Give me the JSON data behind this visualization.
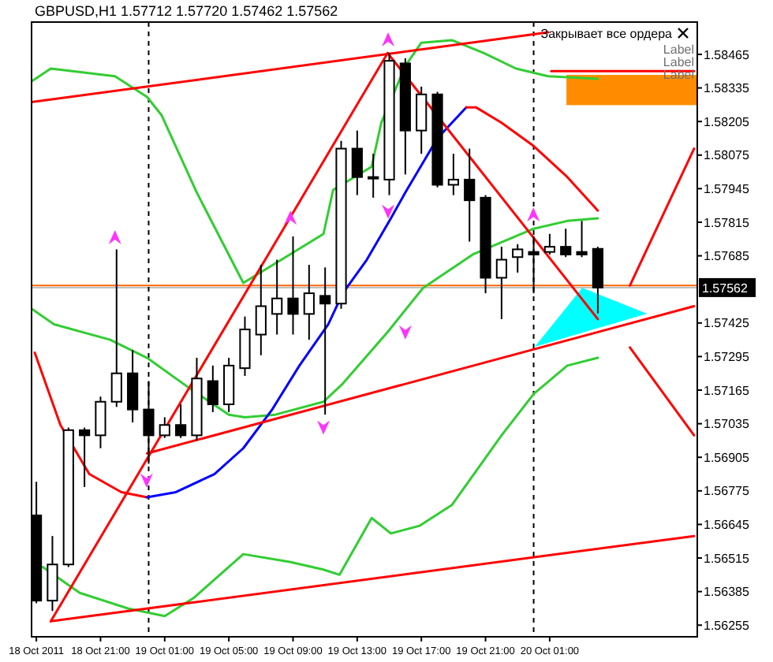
{
  "chart_data": {
    "type": "candlestick",
    "title": "GBPUSD,H1 1.57712 1.57720 1.57462 1.57562",
    "x": [
      "2011-10-18T17:00",
      "2011-10-18T18:00",
      "2011-10-18T19:00",
      "2011-10-18T20:00",
      "2011-10-18T21:00",
      "2011-10-18T22:00",
      "2011-10-18T23:00",
      "2011-10-19T00:00",
      "2011-10-19T01:00",
      "2011-10-19T02:00",
      "2011-10-19T03:00",
      "2011-10-19T04:00",
      "2011-10-19T05:00",
      "2011-10-19T06:00",
      "2011-10-19T07:00",
      "2011-10-19T08:00",
      "2011-10-19T09:00",
      "2011-10-19T10:00",
      "2011-10-19T11:00",
      "2011-10-19T12:00",
      "2011-10-19T13:00",
      "2011-10-19T14:00",
      "2011-10-19T15:00",
      "2011-10-19T16:00",
      "2011-10-19T17:00",
      "2011-10-19T18:00",
      "2011-10-19T19:00",
      "2011-10-19T20:00",
      "2011-10-19T21:00",
      "2011-10-19T22:00",
      "2011-10-19T23:00",
      "2011-10-20T00:00",
      "2011-10-20T01:00",
      "2011-10-20T02:00",
      "2011-10-20T03:00",
      "2011-10-20T04:00"
    ],
    "ohlc": [
      [
        1.5668,
        1.5681,
        1.5634,
        1.5635
      ],
      [
        1.5635,
        1.566,
        1.5631,
        1.5649
      ],
      [
        1.5649,
        1.5702,
        1.5648,
        1.5701
      ],
      [
        1.5701,
        1.5702,
        1.5679,
        1.5699
      ],
      [
        1.5699,
        1.5714,
        1.5694,
        1.5712
      ],
      [
        1.5712,
        1.5771,
        1.571,
        1.5723
      ],
      [
        1.5723,
        1.5732,
        1.5704,
        1.5709
      ],
      [
        1.5709,
        1.572,
        1.5688,
        1.5699
      ],
      [
        1.5699,
        1.5706,
        1.5698,
        1.5703
      ],
      [
        1.5703,
        1.5711,
        1.5698,
        1.5699
      ],
      [
        1.5699,
        1.5729,
        1.5697,
        1.5721
      ],
      [
        1.572,
        1.5726,
        1.5708,
        1.5711
      ],
      [
        1.5711,
        1.5729,
        1.5708,
        1.5726
      ],
      [
        1.5725,
        1.5745,
        1.5722,
        1.574
      ],
      [
        1.5738,
        1.5765,
        1.573,
        1.5749
      ],
      [
        1.5746,
        1.5767,
        1.5738,
        1.5752
      ],
      [
        1.5752,
        1.5776,
        1.5738,
        1.5746
      ],
      [
        1.5746,
        1.5765,
        1.5736,
        1.5754
      ],
      [
        1.5753,
        1.5764,
        1.5707,
        1.575
      ],
      [
        1.575,
        1.5813,
        1.5748,
        1.581
      ],
      [
        1.581,
        1.5817,
        1.5792,
        1.5799
      ],
      [
        1.5799,
        1.5808,
        1.5791,
        1.5799
      ],
      [
        1.5798,
        1.5847,
        1.5792,
        1.5844
      ],
      [
        1.5843,
        1.5845,
        1.58,
        1.5817
      ],
      [
        1.5817,
        1.5834,
        1.5808,
        1.5831
      ],
      [
        1.5831,
        1.5832,
        1.5795,
        1.5796
      ],
      [
        1.5796,
        1.5808,
        1.5792,
        1.5798
      ],
      [
        1.5798,
        1.581,
        1.5774,
        1.579
      ],
      [
        1.5791,
        1.5792,
        1.5754,
        1.576
      ],
      [
        1.576,
        1.5772,
        1.5744,
        1.5767
      ],
      [
        1.5768,
        1.5773,
        1.5762,
        1.5771
      ],
      [
        1.577,
        1.5776,
        1.5754,
        1.5769
      ],
      [
        1.577,
        1.5777,
        1.5769,
        1.5772
      ],
      [
        1.5772,
        1.5779,
        1.5768,
        1.5769
      ],
      [
        1.577,
        1.5782,
        1.5768,
        1.5769
      ],
      [
        1.57712,
        1.5772,
        1.57462,
        1.57562
      ]
    ],
    "series": [
      {
        "type": "line",
        "color": "#32cd32",
        "x": [
          "2011-10-18T16:42",
          "2011-10-18T17:54",
          "2011-10-18T21:54",
          "2011-10-18T23:54",
          "2011-10-19T00:48",
          "2011-10-19T03:00",
          "2011-10-19T05:54",
          "2011-10-19T08:48",
          "2011-10-19T10:54",
          "2011-10-19T11:30",
          "2011-10-19T13:54",
          "2011-10-19T14:30",
          "2011-10-19T16:00",
          "2011-10-19T17:00",
          "2011-10-19T18:54",
          "2011-10-19T20:54",
          "2011-10-19T22:54",
          "2011-10-20T00:54",
          "2011-10-20T04:00"
        ],
        "values": [
          1.5836,
          1.5841,
          1.5838,
          1.583,
          1.5823,
          1.5793,
          1.5758,
          1.5769,
          1.5777,
          1.5794,
          1.5803,
          1.582,
          1.5842,
          1.5851,
          1.5852,
          1.5847,
          1.5841,
          1.5838,
          1.5837
        ]
      },
      {
        "type": "line",
        "color": "#32cd32",
        "x": [
          "2011-10-18T16:42",
          "2011-10-18T18:06",
          "2011-10-18T21:36",
          "2011-10-18T23:54",
          "2011-10-19T02:36",
          "2011-10-19T05:00",
          "2011-10-19T06:00",
          "2011-10-19T07:54",
          "2011-10-19T10:54",
          "2011-10-19T12:06",
          "2011-10-19T14:54",
          "2011-10-19T17:06",
          "2011-10-19T20:12",
          "2011-10-20T00:00",
          "2011-10-20T02:06",
          "2011-10-20T04:00"
        ],
        "values": [
          1.5748,
          1.5742,
          1.5736,
          1.5729,
          1.5717,
          1.5707,
          1.5706,
          1.5707,
          1.5712,
          1.5719,
          1.5739,
          1.5756,
          1.5769,
          1.5779,
          1.5782,
          1.5783
        ]
      },
      {
        "type": "line",
        "color": "#32cd32",
        "x": [
          "2011-10-18T17:24",
          "2011-10-18T19:42",
          "2011-10-18T22:42",
          "2011-10-19T01:00",
          "2011-10-19T02:48",
          "2011-10-19T05:54",
          "2011-10-19T08:48",
          "2011-10-19T10:54",
          "2011-10-19T11:54",
          "2011-10-19T13:54",
          "2011-10-19T15:06",
          "2011-10-19T16:54",
          "2011-10-19T18:54",
          "2011-10-19T22:00",
          "2011-10-20T00:00",
          "2011-10-20T02:06",
          "2011-10-20T04:00"
        ],
        "values": [
          1.5648,
          1.5638,
          1.5632,
          1.5629,
          1.5636,
          1.5653,
          1.565,
          1.5647,
          1.5645,
          1.5667,
          1.5661,
          1.5664,
          1.5672,
          1.5699,
          1.5715,
          1.5726,
          1.5729
        ]
      },
      {
        "type": "line",
        "color": "#ff0000",
        "x": [
          "2011-10-18T16:54",
          "2011-10-18T18:30",
          "2011-10-18T20:18",
          "2011-10-18T22:18",
          "2011-10-18T23:54"
        ],
        "values": [
          1.5731,
          1.5703,
          1.5684,
          1.5677,
          1.5675
        ]
      },
      {
        "type": "line",
        "color": "#0000ff",
        "x": [
          "2011-10-18T23:54",
          "2011-10-19T01:42",
          "2011-10-19T04:06",
          "2011-10-19T05:54",
          "2011-10-19T07:42",
          "2011-10-19T09:24",
          "2011-10-19T11:12",
          "2011-10-19T12:06",
          "2011-10-19T13:36",
          "2011-10-19T15:06",
          "2011-10-19T16:00",
          "2011-10-19T18:00",
          "2011-10-19T19:48"
        ],
        "values": [
          1.5675,
          1.5677,
          1.5684,
          1.5694,
          1.5709,
          1.5726,
          1.5742,
          1.5754,
          1.5767,
          1.5783,
          1.5793,
          1.5814,
          1.5826
        ]
      },
      {
        "type": "line",
        "color": "#ff0000",
        "x": [
          "2011-10-19T19:48",
          "2011-10-19T20:24",
          "2011-10-19T22:00",
          "2011-10-20T00:00",
          "2011-10-20T02:06",
          "2011-10-20T04:00"
        ],
        "values": [
          1.5826,
          1.5826,
          1.582,
          1.5811,
          1.5799,
          1.5786
        ]
      },
      {
        "type": "line",
        "color": "#ff0000",
        "x": [
          "2011-10-18T16:42",
          "2011-10-20T00:54"
        ],
        "values": [
          1.5828,
          1.5855
        ]
      },
      {
        "type": "line",
        "color": "#ff0000",
        "x": [
          "2011-10-18T17:54",
          "2011-10-20T10:00"
        ],
        "values": [
          1.5627,
          1.566
        ]
      },
      {
        "type": "line",
        "color": "#ff0000",
        "x": [
          "2011-10-18T23:54",
          "2011-10-20T10:00"
        ],
        "values": [
          1.5692,
          1.5749
        ]
      },
      {
        "type": "line",
        "color": "#ff0000",
        "x": [
          "2011-10-18T17:54",
          "2011-10-19T14:54"
        ],
        "values": [
          1.5627,
          1.5847
        ]
      },
      {
        "type": "line",
        "color": "#ff0000",
        "x": [
          "2011-10-19T14:54",
          "2011-10-20T04:00"
        ],
        "values": [
          1.5847,
          1.5744
        ]
      },
      {
        "type": "line",
        "color": "#ff0000",
        "x": [
          "2011-10-20T06:00",
          "2011-10-20T10:00"
        ],
        "values": [
          1.5757,
          1.581
        ]
      },
      {
        "type": "line",
        "color": "#ff0000",
        "x": [
          "2011-10-20T06:00",
          "2011-10-20T10:00"
        ],
        "values": [
          1.5733,
          1.5699
        ]
      },
      {
        "type": "line",
        "color": "#ff0000",
        "x": [
          "2011-10-20T01:06",
          "2011-10-20T10:00"
        ],
        "values": [
          1.584,
          1.584
        ]
      }
    ],
    "xlim": [
      "2011-10-18T16:42",
      "2011-10-20T10:12"
    ],
    "xticks": [
      {
        "value": "2011-10-18T17:00",
        "label": "18 Oct 2011"
      },
      {
        "value": "2011-10-18T21:00",
        "label": "18 Oct 21:00"
      },
      {
        "value": "2011-10-19T01:00",
        "label": "19 Oct 01:00"
      },
      {
        "value": "2011-10-19T05:00",
        "label": "19 Oct 05:00"
      },
      {
        "value": "2011-10-19T09:00",
        "label": "19 Oct 09:00"
      },
      {
        "value": "2011-10-19T13:00",
        "label": "19 Oct 13:00"
      },
      {
        "value": "2011-10-19T17:00",
        "label": "19 Oct 17:00"
      },
      {
        "value": "2011-10-19T21:00",
        "label": "19 Oct 21:00"
      },
      {
        "value": "2011-10-20T01:00",
        "label": "20 Oct 01:00"
      }
    ],
    "ylim": [
      1.5621,
      1.5859
    ],
    "yticks": [
      1.58465,
      1.58335,
      1.58205,
      1.58075,
      1.57945,
      1.57815,
      1.57685,
      1.57425,
      1.57295,
      1.57165,
      1.57035,
      1.56905,
      1.56775,
      1.56645,
      1.56515,
      1.56385,
      1.56255
    ],
    "ref_lines": [
      {
        "axis": "y",
        "value": 1.5757,
        "label": null,
        "color": "#ff6600"
      },
      {
        "axis": "y",
        "value": 1.57562,
        "label": "1.57562",
        "color": "#c0c0c0"
      },
      {
        "axis": "x",
        "value": "2011-10-19T00:00",
        "label": null,
        "color": "#000000",
        "line_style": "dashed"
      },
      {
        "axis": "x",
        "value": "2011-10-20T00:00",
        "label": null,
        "color": "#000000",
        "line_style": "dashed"
      }
    ],
    "annotations": [
      "Закрывает все ордера",
      "Label",
      "Label",
      "Label"
    ],
    "grid": false
  }
}
